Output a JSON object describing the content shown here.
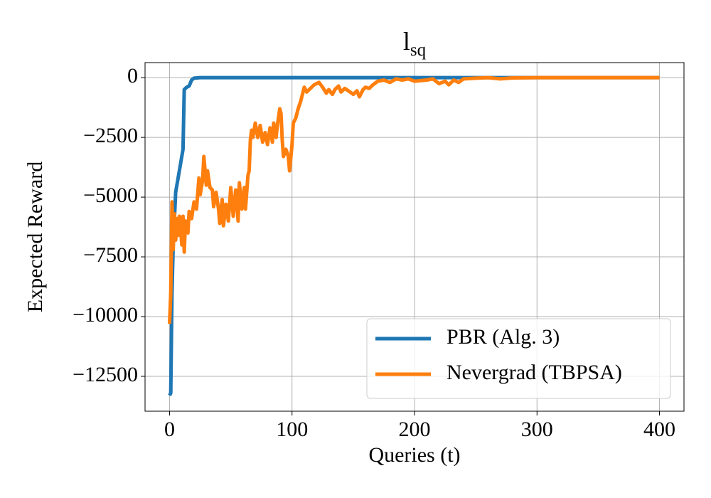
{
  "chart_data": {
    "type": "line",
    "title": "l",
    "title_subscript": "sq",
    "xlabel": "Queries (t)",
    "ylabel": "Expected Reward",
    "xlim": [
      -20,
      420
    ],
    "ylim": [
      -13960,
      630
    ],
    "xticks": [
      0,
      100,
      200,
      300,
      400
    ],
    "yticks": [
      {
        "value": -12500,
        "label": "−12500"
      },
      {
        "value": -10000,
        "label": "−10000"
      },
      {
        "value": -7500,
        "label": "−7500"
      },
      {
        "value": -5000,
        "label": "−5000"
      },
      {
        "value": -2500,
        "label": "−2500"
      },
      0
    ],
    "grid": true,
    "legend": "lower right",
    "series": [
      {
        "name": "PBR (Alg. 3)",
        "color": "#1f77b4",
        "x": [
          0,
          1,
          2,
          3,
          5,
          8,
          11,
          12,
          14,
          16,
          18,
          20,
          25,
          400
        ],
        "values": [
          -13300,
          -13200,
          -9000,
          -7000,
          -4800,
          -3900,
          -3000,
          -500,
          -400,
          -350,
          -100,
          -20,
          0,
          0
        ]
      },
      {
        "name": "Nevergrad (TBPSA)",
        "color": "#ff7f0e",
        "x": [
          0,
          1,
          2,
          3,
          4,
          5,
          6,
          7,
          8,
          9,
          10,
          11,
          12,
          13,
          15,
          16,
          18,
          20,
          22,
          24,
          25,
          27,
          28,
          30,
          31,
          33,
          35,
          36,
          38,
          40,
          41,
          43,
          44,
          46,
          48,
          50,
          52,
          54,
          56,
          57,
          59,
          61,
          62,
          64,
          65,
          66,
          67,
          68,
          70,
          72,
          74,
          76,
          78,
          80,
          82,
          84,
          85,
          87,
          88,
          90,
          91,
          92,
          93,
          95,
          97,
          98,
          100,
          101,
          103,
          105,
          107,
          110,
          112,
          115,
          118,
          120,
          122,
          125,
          128,
          130,
          133,
          135,
          138,
          140,
          143,
          146,
          150,
          153,
          155,
          158,
          160,
          163,
          166,
          170,
          175,
          180,
          185,
          190,
          195,
          200,
          210,
          215,
          220,
          225,
          228,
          232,
          236,
          240,
          250,
          260,
          270,
          280,
          300,
          350,
          400
        ],
        "values": [
          -10300,
          -9000,
          -5200,
          -7200,
          -5700,
          -6800,
          -5900,
          -6600,
          -5800,
          -6200,
          -7000,
          -5800,
          -7300,
          -6000,
          -6500,
          -5600,
          -5900,
          -5200,
          -5500,
          -4200,
          -4900,
          -4300,
          -3300,
          -4500,
          -3900,
          -4600,
          -4700,
          -5400,
          -4800,
          -5500,
          -6100,
          -5100,
          -6200,
          -5300,
          -6000,
          -4600,
          -5800,
          -4700,
          -6000,
          -4400,
          -5500,
          -4600,
          -5500,
          -4100,
          -3900,
          -2600,
          -2200,
          -2500,
          -1900,
          -2500,
          -2000,
          -2700,
          -2300,
          -2800,
          -2100,
          -2700,
          -1900,
          -2500,
          -2000,
          -1300,
          -1500,
          -2600,
          -3300,
          -3000,
          -3300,
          -3900,
          -2800,
          -1900,
          -1700,
          -1300,
          -1000,
          -400,
          -600,
          -450,
          -300,
          -250,
          -200,
          -400,
          -650,
          -500,
          -700,
          -500,
          -350,
          -600,
          -450,
          -550,
          -700,
          -550,
          -800,
          -500,
          -400,
          -450,
          -300,
          -150,
          -100,
          -200,
          -50,
          -100,
          -50,
          -150,
          -100,
          -50,
          -250,
          -150,
          -300,
          -100,
          -200,
          -50,
          -20,
          0,
          -50,
          -10,
          0,
          0,
          0
        ]
      }
    ]
  }
}
